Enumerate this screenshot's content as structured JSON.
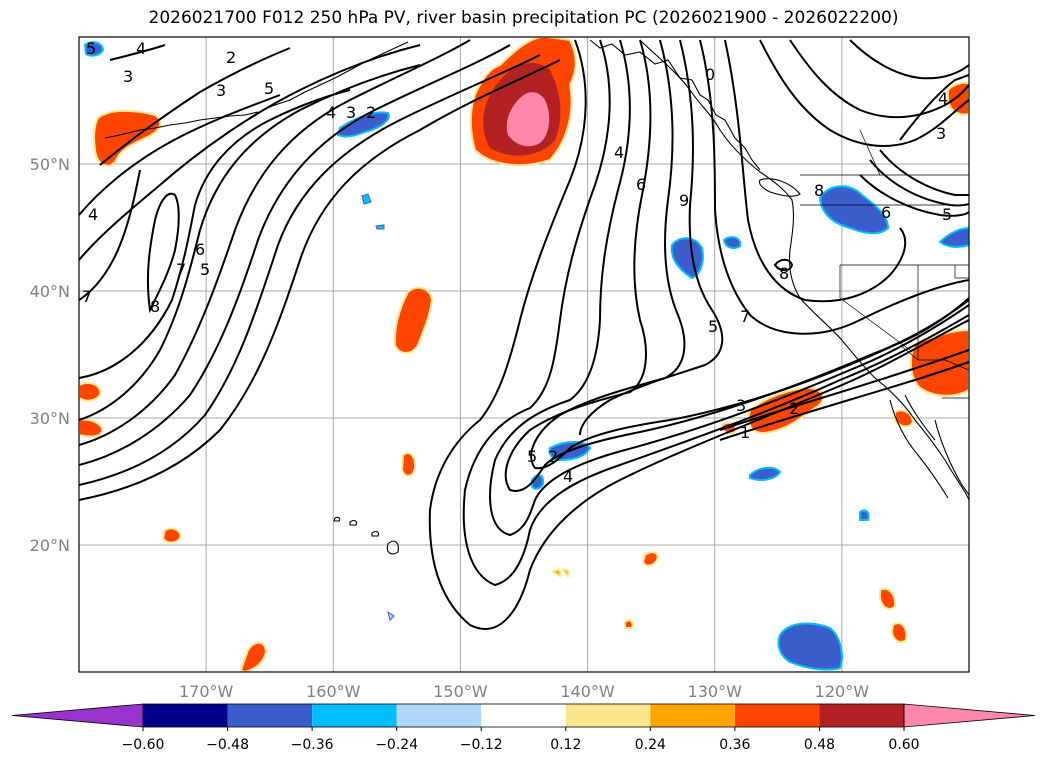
{
  "title": "2026021700 F012 250 hPa PV, river basin precipitation PC (2026021900 - 2026022200)",
  "colors": {
    "grid": "#a9a9a9",
    "coast": "#000000",
    "contour": "#000000",
    "axis_label": "#808080"
  },
  "map": {
    "projection": "PlateCarree",
    "lon_range": [
      -180,
      -110
    ],
    "lat_range": [
      10,
      60
    ],
    "lat_ticks": [
      {
        "value": 20,
        "label": "20°N"
      },
      {
        "value": 30,
        "label": "30°N"
      },
      {
        "value": 40,
        "label": "40°N"
      },
      {
        "value": 50,
        "label": "50°N"
      }
    ],
    "lon_ticks": [
      {
        "value": -170,
        "label": "170°W"
      },
      {
        "value": -160,
        "label": "160°W"
      },
      {
        "value": -150,
        "label": "150°W"
      },
      {
        "value": -140,
        "label": "140°W"
      },
      {
        "value": -130,
        "label": "130°W"
      },
      {
        "value": -120,
        "label": "120°W"
      }
    ]
  },
  "colorbar": {
    "levels": [
      -0.6,
      -0.48,
      -0.36,
      -0.24,
      -0.12,
      0.12,
      0.24,
      0.36,
      0.48,
      0.6
    ],
    "tick_labels": [
      "−0.60",
      "−0.48",
      "−0.36",
      "−0.24",
      "−0.12",
      "0.12",
      "0.24",
      "0.36",
      "0.48",
      "0.60"
    ],
    "colors": [
      "#9933cc",
      "#00008b",
      "#3a5fcd",
      "#00bfff",
      "#add8f6",
      "#ffffff",
      "#fce68c",
      "#ffa500",
      "#ff4500",
      "#b22222",
      "#ff88aa"
    ],
    "extend": "both"
  },
  "contour_labels": [
    "5",
    "4",
    "3",
    "2",
    "3",
    "5",
    "4",
    "3",
    "2",
    "4",
    "7",
    "6",
    "5",
    "8",
    "7",
    "4",
    "6",
    "9",
    "0",
    "8",
    "6",
    "5",
    "4",
    "3",
    "8",
    "7",
    "5",
    "5",
    "4",
    "3",
    "2",
    "1",
    "2",
    "4",
    "5"
  ],
  "precip_regions": [
    {
      "name": "gulf-of-alaska-max",
      "category": "positive-high"
    },
    {
      "name": "hawaii-north",
      "category": "positive"
    },
    {
      "name": "california-south",
      "category": "positive"
    },
    {
      "name": "pacific-northwest",
      "category": "negative"
    },
    {
      "name": "mexico-west",
      "category": "negative"
    }
  ]
}
